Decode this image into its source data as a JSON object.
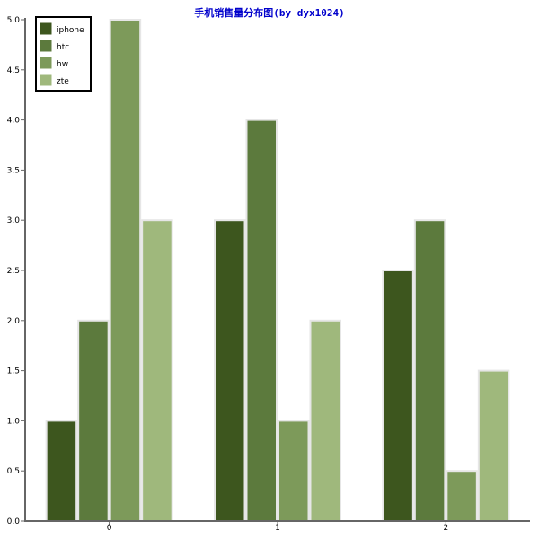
{
  "chart_data": {
    "type": "bar",
    "title": "手机销售量分布图(by dyx1024)",
    "categories": [
      "0",
      "1",
      "2"
    ],
    "series": [
      {
        "name": "iphone",
        "values": [
          1,
          3,
          2.5
        ],
        "color": "#3d561e"
      },
      {
        "name": "htc",
        "values": [
          2,
          4,
          3
        ],
        "color": "#5c7a3d"
      },
      {
        "name": "hw",
        "values": [
          5,
          1,
          0.5
        ],
        "color": "#7d9a5a"
      },
      {
        "name": "zte",
        "values": [
          3,
          2,
          1.5
        ],
        "color": "#9fb87c"
      }
    ],
    "ylim": [
      0,
      5
    ],
    "yticks": [
      "0.0",
      "0.5",
      "1.0",
      "1.5",
      "2.0",
      "2.5",
      "3.0",
      "3.5",
      "4.0",
      "4.5",
      "5.0"
    ],
    "legend_position": "top-left",
    "grid": false
  }
}
